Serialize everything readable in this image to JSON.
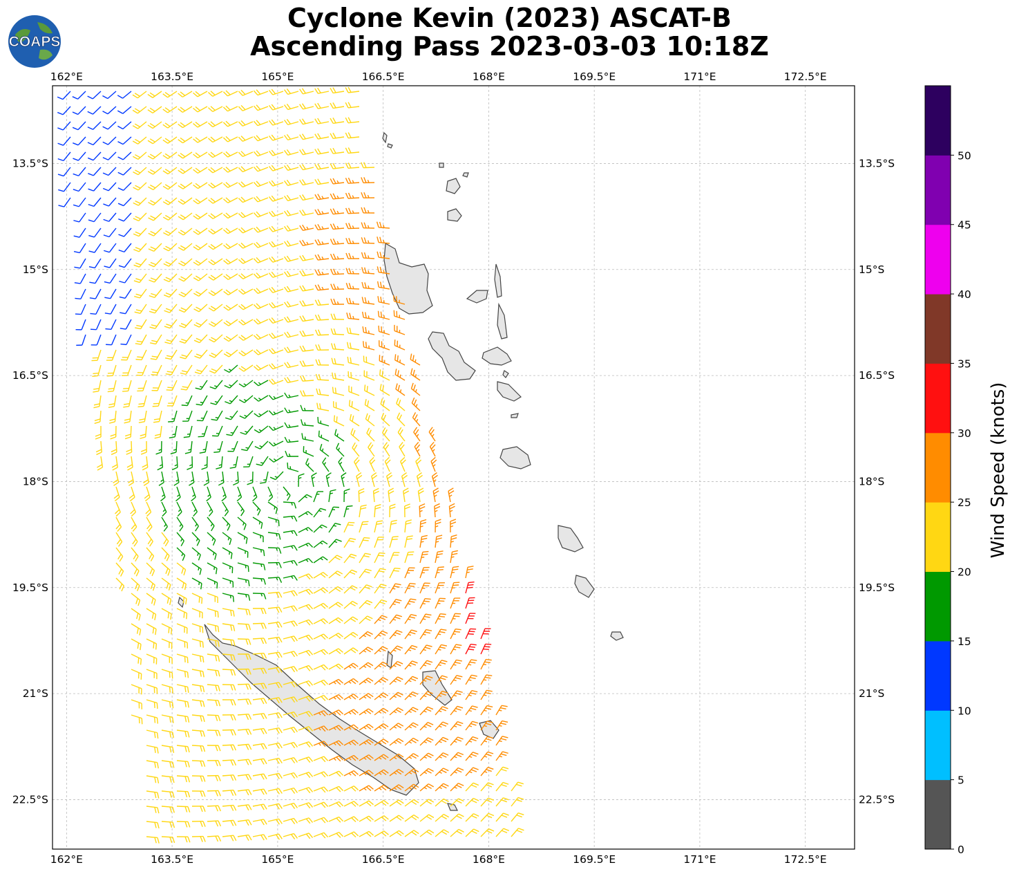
{
  "title": {
    "line1": "Cyclone Kevin (2023) ASCAT-B",
    "line2": "Ascending Pass 2023-03-03 10:18Z"
  },
  "logo": {
    "text": "COAPS"
  },
  "map": {
    "lon_range": [
      161.8,
      173.2
    ],
    "lat_range": [
      -23.2,
      -12.4
    ],
    "lon_ticks": [
      "162°E",
      "163.5°E",
      "165°E",
      "166.5°E",
      "168°E",
      "169.5°E",
      "171°E",
      "172.5°E"
    ],
    "lat_ticks": [
      "13.5°S",
      "15°S",
      "16.5°S",
      "18°S",
      "19.5°S",
      "21°S",
      "22.5°S"
    ],
    "grid": true,
    "land_color": "#e6e6e6",
    "coast_color": "#444444"
  },
  "colorbar": {
    "label": "Wind Speed (knots)",
    "ticks": [
      "0",
      "5",
      "10",
      "15",
      "20",
      "25",
      "30",
      "35",
      "40",
      "45",
      "50"
    ],
    "colors": [
      "#555555",
      "#00bfff",
      "#0038ff",
      "#009900",
      "#ffd713",
      "#ff8c00",
      "#ff1010",
      "#803828",
      "#ee00ee",
      "#8000b0",
      "#2d005f"
    ]
  }
}
